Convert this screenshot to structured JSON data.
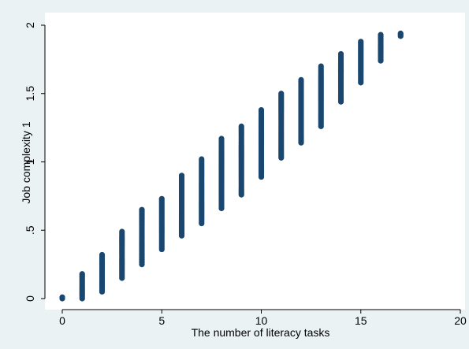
{
  "chart_data": {
    "type": "scatter",
    "xlabel": "The number of literacy tasks",
    "ylabel": "Job complexity 1",
    "xlim": [
      0,
      20
    ],
    "ylim": [
      0,
      2
    ],
    "x_ticks": [
      0,
      5,
      10,
      15,
      20
    ],
    "x_tick_labels": [
      "0",
      "5",
      "10",
      "15",
      "20"
    ],
    "y_ticks": [
      0,
      0.5,
      1,
      1.5,
      2
    ],
    "y_tick_labels": [
      "0",
      ".5",
      "1",
      "1.5",
      "2"
    ],
    "grid": false,
    "marker_color": "#1a476f",
    "background_color": "#eaf2f3",
    "plot_background_color": "#ffffff",
    "series": [
      {
        "points": [
          {
            "x": 0,
            "y_min": 0.0,
            "y_max": 0.01
          },
          {
            "x": 1,
            "y_min": 0.0,
            "y_max": 0.18
          },
          {
            "x": 2,
            "y_min": 0.05,
            "y_max": 0.32
          },
          {
            "x": 3,
            "y_min": 0.15,
            "y_max": 0.49
          },
          {
            "x": 4,
            "y_min": 0.25,
            "y_max": 0.65
          },
          {
            "x": 5,
            "y_min": 0.36,
            "y_max": 0.73
          },
          {
            "x": 6,
            "y_min": 0.46,
            "y_max": 0.9
          },
          {
            "x": 7,
            "y_min": 0.55,
            "y_max": 1.02
          },
          {
            "x": 8,
            "y_min": 0.66,
            "y_max": 1.17
          },
          {
            "x": 9,
            "y_min": 0.76,
            "y_max": 1.26
          },
          {
            "x": 10,
            "y_min": 0.89,
            "y_max": 1.38
          },
          {
            "x": 11,
            "y_min": 1.03,
            "y_max": 1.5
          },
          {
            "x": 12,
            "y_min": 1.14,
            "y_max": 1.6
          },
          {
            "x": 13,
            "y_min": 1.26,
            "y_max": 1.7
          },
          {
            "x": 14,
            "y_min": 1.44,
            "y_max": 1.79
          },
          {
            "x": 15,
            "y_min": 1.58,
            "y_max": 1.88
          },
          {
            "x": 16,
            "y_min": 1.74,
            "y_max": 1.93
          },
          {
            "x": 17,
            "y_min": 1.92,
            "y_max": 1.94
          }
        ]
      }
    ]
  }
}
